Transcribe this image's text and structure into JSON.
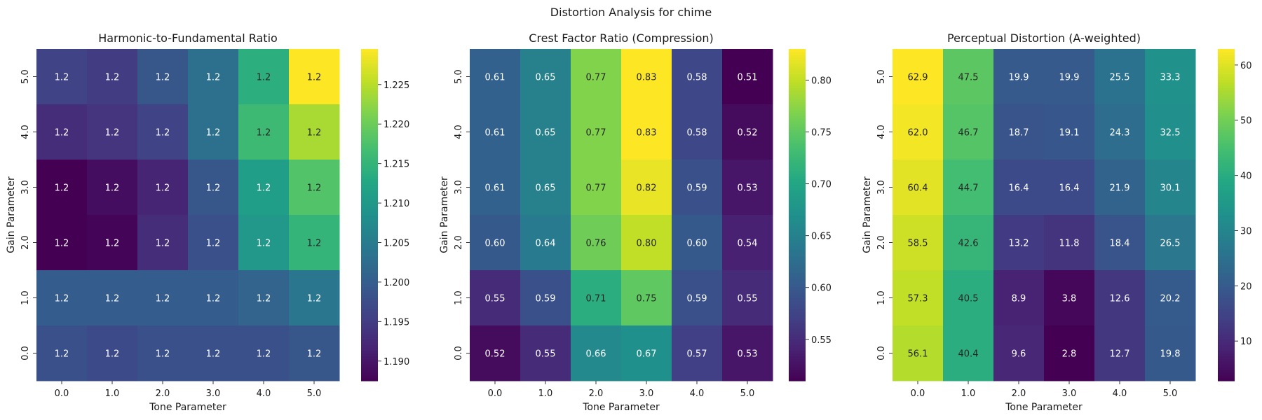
{
  "figure_title": "Distortion Analysis for chime",
  "chart_data": [
    {
      "type": "heatmap",
      "title": "Harmonic-to-Fundamental Ratio",
      "xlabel": "Tone Parameter",
      "ylabel": "Gain Parameter",
      "x_categories": [
        "0.0",
        "1.0",
        "2.0",
        "3.0",
        "4.0",
        "5.0"
      ],
      "y_categories": [
        "5.0",
        "4.0",
        "3.0",
        "2.0",
        "1.0",
        "0.0"
      ],
      "colormap": "viridis",
      "vmin": 1.1875,
      "vmax": 1.2295,
      "colorbar_ticks": [
        "1.190",
        "1.195",
        "1.200",
        "1.205",
        "1.210",
        "1.215",
        "1.220",
        "1.225"
      ],
      "values": [
        [
          1.196,
          1.195,
          1.199,
          1.203,
          1.214,
          1.2295
        ],
        [
          1.193,
          1.194,
          1.196,
          1.203,
          1.216,
          1.224
        ],
        [
          1.1875,
          1.189,
          1.192,
          1.199,
          1.211,
          1.218
        ],
        [
          1.1875,
          1.188,
          1.193,
          1.198,
          1.21,
          1.215
        ],
        [
          1.2,
          1.2,
          1.2,
          1.2,
          1.201,
          1.204
        ],
        [
          1.198,
          1.197,
          1.198,
          1.198,
          1.198,
          1.199
        ]
      ],
      "labels": [
        [
          "1.2",
          "1.2",
          "1.2",
          "1.2",
          "1.2",
          "1.2"
        ],
        [
          "1.2",
          "1.2",
          "1.2",
          "1.2",
          "1.2",
          "1.2"
        ],
        [
          "1.2",
          "1.2",
          "1.2",
          "1.2",
          "1.2",
          "1.2"
        ],
        [
          "1.2",
          "1.2",
          "1.2",
          "1.2",
          "1.2",
          "1.2"
        ],
        [
          "1.2",
          "1.2",
          "1.2",
          "1.2",
          "1.2",
          "1.2"
        ],
        [
          "1.2",
          "1.2",
          "1.2",
          "1.2",
          "1.2",
          "1.2"
        ]
      ]
    },
    {
      "type": "heatmap",
      "title": "Crest Factor Ratio (Compression)",
      "xlabel": "Tone Parameter",
      "ylabel": "Gain Parameter",
      "x_categories": [
        "0.0",
        "1.0",
        "2.0",
        "3.0",
        "4.0",
        "5.0"
      ],
      "y_categories": [
        "5.0",
        "4.0",
        "3.0",
        "2.0",
        "1.0",
        "0.0"
      ],
      "colormap": "viridis",
      "vmin": 0.51,
      "vmax": 0.83,
      "colorbar_ticks": [
        "0.55",
        "0.60",
        "0.65",
        "0.70",
        "0.75",
        "0.80"
      ],
      "values": [
        [
          0.61,
          0.65,
          0.77,
          0.83,
          0.58,
          0.51
        ],
        [
          0.61,
          0.65,
          0.77,
          0.83,
          0.58,
          0.52
        ],
        [
          0.61,
          0.65,
          0.77,
          0.82,
          0.59,
          0.53
        ],
        [
          0.6,
          0.64,
          0.76,
          0.8,
          0.6,
          0.54
        ],
        [
          0.55,
          0.59,
          0.71,
          0.75,
          0.59,
          0.55
        ],
        [
          0.52,
          0.55,
          0.66,
          0.67,
          0.57,
          0.53
        ]
      ],
      "labels": [
        [
          "0.61",
          "0.65",
          "0.77",
          "0.83",
          "0.58",
          "0.51"
        ],
        [
          "0.61",
          "0.65",
          "0.77",
          "0.83",
          "0.58",
          "0.52"
        ],
        [
          "0.61",
          "0.65",
          "0.77",
          "0.82",
          "0.59",
          "0.53"
        ],
        [
          "0.60",
          "0.64",
          "0.76",
          "0.80",
          "0.60",
          "0.54"
        ],
        [
          "0.55",
          "0.59",
          "0.71",
          "0.75",
          "0.59",
          "0.55"
        ],
        [
          "0.52",
          "0.55",
          "0.66",
          "0.67",
          "0.57",
          "0.53"
        ]
      ]
    },
    {
      "type": "heatmap",
      "title": "Perceptual Distortion (A-weighted)",
      "xlabel": "Tone Parameter",
      "ylabel": "Gain Parameter",
      "x_categories": [
        "0.0",
        "1.0",
        "2.0",
        "3.0",
        "4.0",
        "5.0"
      ],
      "y_categories": [
        "5.0",
        "4.0",
        "3.0",
        "2.0",
        "1.0",
        "0.0"
      ],
      "colormap": "viridis",
      "vmin": 2.8,
      "vmax": 62.9,
      "colorbar_ticks": [
        "10",
        "20",
        "30",
        "40",
        "50",
        "60"
      ],
      "values": [
        [
          62.9,
          47.5,
          19.9,
          19.9,
          25.5,
          33.3
        ],
        [
          62.0,
          46.7,
          18.7,
          19.1,
          24.3,
          32.5
        ],
        [
          60.4,
          44.7,
          16.4,
          16.4,
          21.9,
          30.1
        ],
        [
          58.5,
          42.6,
          13.2,
          11.8,
          18.4,
          26.5
        ],
        [
          57.3,
          40.5,
          8.9,
          3.8,
          12.6,
          20.2
        ],
        [
          56.1,
          40.4,
          9.6,
          2.8,
          12.7,
          19.8
        ]
      ],
      "labels": [
        [
          "62.9",
          "47.5",
          "19.9",
          "19.9",
          "25.5",
          "33.3"
        ],
        [
          "62.0",
          "46.7",
          "18.7",
          "19.1",
          "24.3",
          "32.5"
        ],
        [
          "60.4",
          "44.7",
          "16.4",
          "16.4",
          "21.9",
          "30.1"
        ],
        [
          "58.5",
          "42.6",
          "13.2",
          "11.8",
          "18.4",
          "26.5"
        ],
        [
          "57.3",
          "40.5",
          "8.9",
          "3.8",
          "12.6",
          "20.2"
        ],
        [
          "56.1",
          "40.4",
          "9.6",
          "2.8",
          "12.7",
          "19.8"
        ]
      ]
    }
  ]
}
